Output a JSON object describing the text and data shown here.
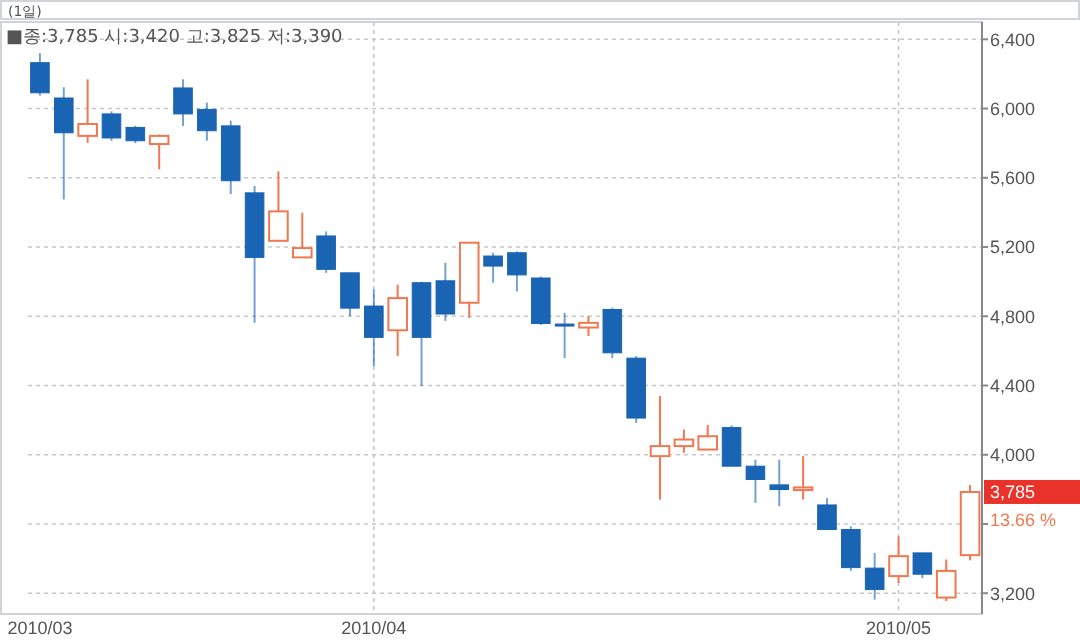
{
  "chart_data": {
    "type": "candlestick",
    "title": "(1일)",
    "subtitle": "■종:3,785  시:3,420  고:3,825  저:3,390",
    "categories": [
      "2010/03",
      null,
      null,
      null,
      null,
      null,
      null,
      null,
      null,
      null,
      null,
      null,
      null,
      null,
      "2010/04",
      null,
      null,
      null,
      null,
      null,
      null,
      null,
      null,
      null,
      null,
      null,
      null,
      null,
      null,
      null,
      null,
      null,
      null,
      null,
      null,
      null,
      "2010/05",
      null,
      null,
      null
    ],
    "ohlc": [
      [
        6265,
        6320,
        6075,
        6091
      ],
      [
        6061,
        6123,
        5475,
        5860
      ],
      [
        5842,
        6169,
        5802,
        5911
      ],
      [
        5969,
        5984,
        5814,
        5830
      ],
      [
        5891,
        5900,
        5800,
        5814
      ],
      [
        5795,
        5850,
        5649,
        5842
      ],
      [
        6119,
        6169,
        5900,
        5969
      ],
      [
        5995,
        6034,
        5814,
        5872
      ],
      [
        5900,
        5930,
        5506,
        5583
      ],
      [
        5513,
        5553,
        4762,
        5140
      ],
      [
        5236,
        5637,
        5236,
        5406
      ],
      [
        5140,
        5398,
        5140,
        5194
      ],
      [
        5264,
        5290,
        5051,
        5071
      ],
      [
        5051,
        5051,
        4801,
        4847
      ],
      [
        4859,
        4955,
        4512,
        4678
      ],
      [
        4719,
        4982,
        4570,
        4905
      ],
      [
        4994,
        5000,
        4397,
        4678
      ],
      [
        5005,
        5109,
        4773,
        4813
      ],
      [
        4878,
        5225,
        4790,
        5225
      ],
      [
        5148,
        5167,
        4994,
        5090
      ],
      [
        5167,
        5175,
        4943,
        5039
      ],
      [
        5021,
        5030,
        4750,
        4758
      ],
      [
        4755,
        4820,
        4558,
        4745
      ],
      [
        4735,
        4801,
        4686,
        4762
      ],
      [
        4839,
        4850,
        4558,
        4589
      ],
      [
        4558,
        4570,
        4184,
        4212
      ],
      [
        3992,
        4339,
        3741,
        4050
      ],
      [
        4050,
        4146,
        4011,
        4088
      ],
      [
        4030,
        4172,
        4030,
        4107
      ],
      [
        4157,
        4170,
        3934,
        3934
      ],
      [
        3934,
        3972,
        3722,
        3857
      ],
      [
        3826,
        3972,
        3703,
        3799
      ],
      [
        3796,
        3992,
        3741,
        3811
      ],
      [
        3710,
        3749,
        3568,
        3568
      ],
      [
        3568,
        3587,
        3329,
        3348
      ],
      [
        3345,
        3433,
        3163,
        3221
      ],
      [
        3299,
        3529,
        3259,
        3414
      ],
      [
        3433,
        3433,
        3287,
        3310
      ],
      [
        3175,
        3395,
        3155,
        3329
      ],
      [
        3420,
        3825,
        3390,
        3785
      ]
    ],
    "colors": [
      "#1a64b4",
      "#1a64b4",
      "#f07850",
      "#1a64b4",
      "#1a64b4",
      "#f07850",
      "#1a64b4",
      "#1a64b4",
      "#1a64b4",
      "#1a64b4",
      "#f07850",
      "#f07850",
      "#1a64b4",
      "#1a64b4",
      "#1a64b4",
      "#f07850",
      "#1a64b4",
      "#1a64b4",
      "#f07850",
      "#1a64b4",
      "#1a64b4",
      "#1a64b4",
      "#1a64b4",
      "#f07850",
      "#1a64b4",
      "#1a64b4",
      "#f07850",
      "#f07850",
      "#f07850",
      "#1a64b4",
      "#1a64b4",
      "#1a64b4",
      "#f07850",
      "#1a64b4",
      "#1a64b4",
      "#1a64b4",
      "#f07850",
      "#1a64b4",
      "#f07850",
      "#f07850"
    ],
    "ylim": [
      3080,
      6500
    ],
    "yticks": [
      {
        "value": 3200,
        "label": "3,200"
      },
      {
        "value": 3600,
        "label": null
      },
      {
        "value": 4000,
        "label": "4,000"
      },
      {
        "value": 4400,
        "label": "4,400"
      },
      {
        "value": 4800,
        "label": "4,800"
      },
      {
        "value": 5200,
        "label": "5,200"
      },
      {
        "value": 5600,
        "label": "5,600"
      },
      {
        "value": 6000,
        "label": "6,000"
      },
      {
        "value": 6400,
        "label": "6,400"
      }
    ],
    "grid": true,
    "annotations": [
      "3,785",
      "13.66 %"
    ]
  }
}
